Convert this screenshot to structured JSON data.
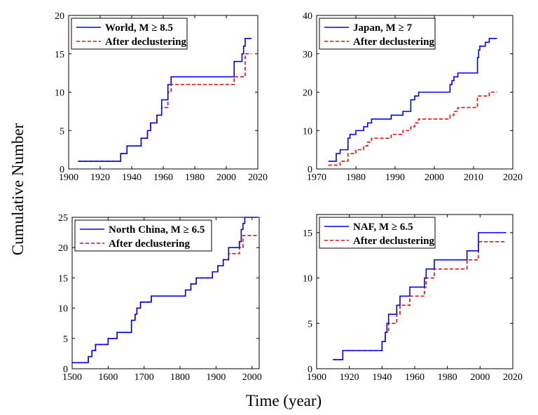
{
  "figure": {
    "ylabel": "Cumulative Number",
    "xlabel": "Time (year)"
  },
  "colors": {
    "main": "#0000ff",
    "declustered": "#ff0000"
  },
  "chart_data": [
    {
      "type": "line",
      "xlim": [
        1900,
        2020
      ],
      "ylim": [
        0,
        20
      ],
      "xticks": [
        1900,
        1920,
        1940,
        1960,
        1980,
        2000,
        2020
      ],
      "yticks": [
        0,
        5,
        10,
        15,
        20
      ],
      "legend_position": "top-left",
      "series": [
        {
          "name": "World, M ≥ 8.5",
          "style": "solid",
          "x": [
            1906,
            1933,
            1937,
            1946,
            1950,
            1952,
            1956,
            1959,
            1963,
            1965,
            2005,
            2010,
            2011,
            2012,
            2016
          ],
          "y": [
            1,
            2,
            3,
            4,
            5,
            6,
            7,
            9,
            11,
            12,
            14,
            15,
            16,
            17,
            17
          ]
        },
        {
          "name": "After declustering",
          "style": "dashed",
          "x": [
            1906,
            1933,
            1937,
            1946,
            1950,
            1952,
            1956,
            1959,
            1963,
            1965,
            2005,
            2012,
            2016
          ],
          "y": [
            1,
            2,
            3,
            4,
            5,
            6,
            7,
            8,
            10,
            11,
            12,
            15,
            15
          ]
        }
      ]
    },
    {
      "type": "line",
      "xlim": [
        1970,
        2020
      ],
      "ylim": [
        0,
        40
      ],
      "xticks": [
        1970,
        1980,
        1990,
        2000,
        2010,
        2020
      ],
      "yticks": [
        0,
        10,
        20,
        30,
        40
      ],
      "legend_position": "top-left",
      "series": [
        {
          "name": "Japan, M ≥ 7",
          "style": "solid",
          "x": [
            1973,
            1975,
            1976,
            1978,
            1978.5,
            1980,
            1982,
            1983,
            1984,
            1989,
            1992,
            1994,
            1995,
            1996,
            2004,
            2004.5,
            2005,
            2006,
            2011,
            2011.3,
            2011.6,
            2012,
            2013,
            2014,
            2016
          ],
          "y": [
            2,
            4,
            5,
            8,
            9,
            10,
            11,
            12,
            13,
            14,
            15,
            18,
            19,
            20,
            22,
            23,
            24,
            25,
            29,
            31,
            32,
            32,
            33,
            34,
            34
          ]
        },
        {
          "name": "After declustering",
          "style": "dashed",
          "x": [
            1973,
            1974,
            1976,
            1978,
            1980,
            1982,
            1983,
            1984,
            1989,
            1992,
            1994,
            1995,
            1996,
            2004,
            2005,
            2006,
            2011,
            2013,
            2014,
            2016
          ],
          "y": [
            1,
            1,
            2,
            4,
            5,
            6,
            7,
            8,
            9,
            10,
            11,
            12,
            13,
            14,
            15,
            16,
            19,
            19,
            20,
            20
          ]
        }
      ]
    },
    {
      "type": "line",
      "xlim": [
        1500,
        2020
      ],
      "ylim": [
        0,
        25
      ],
      "xticks": [
        1500,
        1600,
        1700,
        1800,
        1900,
        2000
      ],
      "yticks": [
        0,
        5,
        10,
        15,
        20,
        25
      ],
      "legend_position": "top-left",
      "series": [
        {
          "name": "North China, M ≥ 6.5",
          "style": "solid",
          "x": [
            1500,
            1545,
            1555,
            1565,
            1600,
            1625,
            1665,
            1675,
            1680,
            1690,
            1720,
            1815,
            1830,
            1845,
            1890,
            1905,
            1920,
            1935,
            1965,
            1970,
            1975,
            1980,
            2015
          ],
          "y": [
            1,
            2,
            3,
            4,
            5,
            6,
            8,
            9,
            10,
            11,
            12,
            13,
            14,
            15,
            16,
            17,
            18,
            20,
            21,
            23,
            24,
            25,
            25
          ]
        },
        {
          "name": "After declustering",
          "style": "dashed",
          "x": [
            1500,
            1545,
            1555,
            1565,
            1600,
            1625,
            1665,
            1675,
            1680,
            1690,
            1720,
            1815,
            1830,
            1845,
            1890,
            1905,
            1920,
            1935,
            1965,
            1975,
            2015
          ],
          "y": [
            1,
            2,
            3,
            4,
            5,
            6,
            8,
            9,
            10,
            11,
            12,
            13,
            14,
            15,
            16,
            17,
            18,
            19,
            20,
            22,
            22
          ]
        }
      ]
    },
    {
      "type": "line",
      "xlim": [
        1900,
        2020
      ],
      "ylim": [
        0,
        17
      ],
      "xticks": [
        1900,
        1920,
        1940,
        1960,
        1980,
        2000,
        2020
      ],
      "yticks": [
        0,
        5,
        10,
        15
      ],
      "legend_position": "top-left",
      "series": [
        {
          "name": "NAF, M ≥ 6.5",
          "style": "solid",
          "x": [
            1910,
            1916,
            1940,
            1942,
            1943,
            1944,
            1949,
            1951,
            1953,
            1957,
            1966,
            1967,
            1972,
            1992,
            1999,
            2016
          ],
          "y": [
            1,
            2,
            3,
            4,
            5,
            6,
            7,
            8,
            8,
            9,
            10,
            11,
            12,
            13,
            15,
            15
          ]
        },
        {
          "name": "After declustering",
          "style": "dashed",
          "x": [
            1910,
            1916,
            1940,
            1942,
            1944,
            1949,
            1951,
            1957,
            1966,
            1967,
            1972,
            1992,
            1999,
            2016
          ],
          "y": [
            1,
            2,
            3,
            4,
            5,
            6,
            7,
            8,
            9,
            10,
            11,
            12,
            14,
            14
          ]
        }
      ]
    }
  ]
}
